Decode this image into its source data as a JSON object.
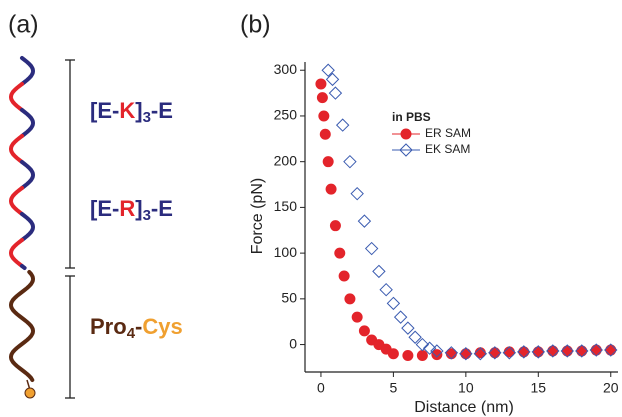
{
  "panel_a": {
    "label": "(a)",
    "peptide_1": [
      "[",
      "E",
      "-",
      "K",
      "]",
      "3",
      "-",
      "E"
    ],
    "peptide_2": [
      "[",
      "E",
      "-",
      "R",
      "]",
      "3",
      "-",
      "E"
    ],
    "peptide_3": [
      "Pro",
      "4",
      "-",
      "Cys"
    ]
  },
  "chart_data": {
    "type": "scatter",
    "panel_label": "(b)",
    "x_label": "Distance (nm)",
    "y_label": "Force (pN)",
    "xlim": [
      -1.1,
      20.5
    ],
    "ylim": [
      -30,
      309
    ],
    "xticks": [
      0,
      5,
      10,
      15,
      20
    ],
    "yticks": [
      0,
      50,
      100,
      150,
      200,
      250,
      300
    ],
    "legend_title": "in PBS",
    "legend": "upper-center",
    "series": [
      {
        "name": "ER SAM",
        "color": "#e3242b",
        "marker": "circle",
        "x": [
          0,
          0.1,
          0.2,
          0.3,
          0.5,
          0.7,
          1,
          1.3,
          1.6,
          2,
          2.5,
          3,
          3.5,
          4,
          4.5,
          5,
          6,
          7,
          8,
          9,
          10,
          11,
          12,
          13,
          14,
          15,
          16,
          17,
          18,
          19,
          20
        ],
        "values": [
          285,
          270,
          250,
          230,
          200,
          170,
          130,
          100,
          75,
          50,
          30,
          15,
          5,
          0,
          -5,
          -10,
          -12,
          -12,
          -11,
          -10,
          -10,
          -9,
          -9,
          -8,
          -8,
          -8,
          -7,
          -7,
          -7,
          -6,
          -6
        ]
      },
      {
        "name": "EK SAM",
        "color": "#3a5bb0",
        "marker": "diamond",
        "x": [
          0.5,
          0.8,
          1,
          1.5,
          2,
          2.5,
          3,
          3.5,
          4,
          4.5,
          5,
          5.5,
          6,
          6.5,
          7,
          7.5,
          8,
          9,
          10,
          11,
          12,
          13,
          14,
          15,
          16,
          17,
          18,
          19,
          20
        ],
        "values": [
          300,
          290,
          275,
          240,
          200,
          165,
          135,
          105,
          80,
          60,
          45,
          30,
          18,
          8,
          0,
          -4,
          -7,
          -9,
          -10,
          -10,
          -9,
          -9,
          -8,
          -8,
          -7,
          -7,
          -7,
          -6,
          -6
        ]
      }
    ]
  }
}
